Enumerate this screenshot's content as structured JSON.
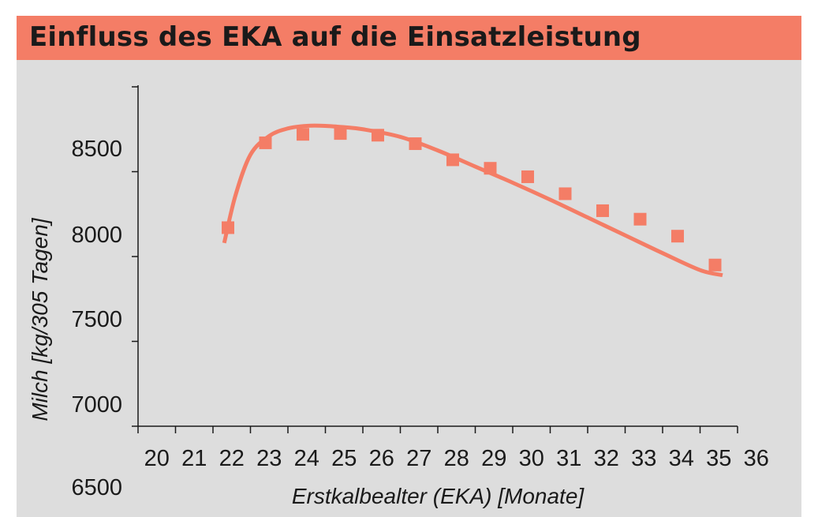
{
  "title": "Einfluss des EKA auf die Einsatzleistung",
  "colors": {
    "accent": "#f47d66",
    "panel": "#dddddd",
    "axis": "#1a1a1a"
  },
  "chart_data": {
    "type": "scatter",
    "title": "Einfluss des EKA auf die Einsatzleistung",
    "xlabel": "Erstkalbealter (EKA) [Monate]",
    "ylabel": "Milch [kg/305 Tagen]",
    "xlim": [
      20,
      36
    ],
    "ylim": [
      6500,
      9000
    ],
    "x_ticks": [
      "20",
      "21",
      "22",
      "23",
      "24",
      "25",
      "26",
      "27",
      "28",
      "29",
      "30",
      "31",
      "32",
      "33",
      "34",
      "35",
      "36"
    ],
    "y_ticks": [
      "8500",
      "8000",
      "7500",
      "7000",
      "6500"
    ],
    "grid": false,
    "series": [
      {
        "kind": "points",
        "x": [
          22.4,
          23.4,
          24.4,
          25.4,
          26.4,
          27.4,
          28.4,
          29.4,
          30.4,
          31.4,
          32.4,
          33.4,
          34.4,
          35.4
        ],
        "y": [
          8170,
          8670,
          8720,
          8725,
          8715,
          8665,
          8570,
          8520,
          8470,
          8370,
          8270,
          8220,
          8120,
          7950
        ]
      },
      {
        "kind": "fit-curve",
        "x": [
          22.3,
          22.6,
          23.0,
          23.5,
          24.0,
          24.5,
          25.0,
          25.5,
          26.0,
          27.0,
          28.0,
          29.0,
          30.0,
          31.0,
          32.0,
          33.0,
          34.0,
          35.0,
          35.6
        ],
        "y": [
          8080,
          8360,
          8600,
          8710,
          8755,
          8770,
          8770,
          8762,
          8750,
          8705,
          8625,
          8530,
          8435,
          8335,
          8230,
          8125,
          8020,
          7920,
          7890
        ]
      }
    ]
  }
}
